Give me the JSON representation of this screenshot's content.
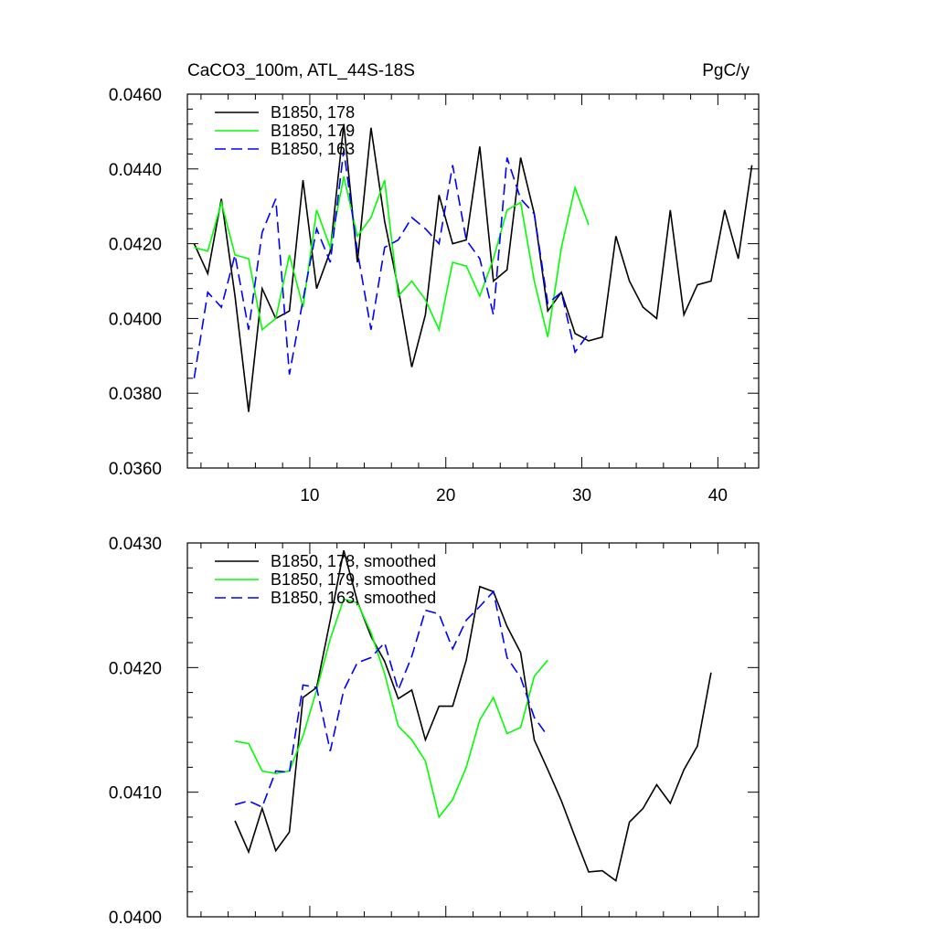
{
  "chart_data": [
    {
      "type": "line",
      "title": "CaCO3_100m, ATL_44S-18S",
      "units": "PgC/y",
      "xlim": [
        1,
        43
      ],
      "ylim": [
        0.036,
        0.046
      ],
      "xticks": [
        10,
        20,
        30,
        40
      ],
      "xtick_labels": [
        "10",
        "20",
        "30",
        "40"
      ],
      "yticks": [
        0.036,
        0.038,
        0.04,
        0.042,
        0.044,
        0.046
      ],
      "ytick_labels": [
        "0.0360",
        "0.0380",
        "0.0400",
        "0.0420",
        "0.0440",
        "0.0460"
      ],
      "legend": "top-left",
      "series": [
        {
          "name": "B1850, 178",
          "color": "#000000",
          "dash": "solid",
          "x": [
            1.5,
            2.5,
            3.5,
            4.5,
            5.5,
            6.5,
            7.5,
            8.5,
            9.5,
            10.5,
            11.5,
            12.5,
            13.5,
            14.5,
            15.5,
            16.5,
            17.5,
            18.5,
            19.5,
            20.5,
            21.5,
            22.5,
            23.5,
            24.5,
            25.5,
            26.5,
            27.5,
            28.5,
            29.5,
            30.5,
            31.5,
            32.5,
            33.5,
            34.5,
            35.5,
            36.5,
            37.5,
            38.5,
            39.5,
            40.5,
            41.5,
            42.5
          ],
          "y": [
            0.042,
            0.0412,
            0.0432,
            0.0406,
            0.0375,
            0.0408,
            0.04,
            0.0402,
            0.0437,
            0.0408,
            0.0418,
            0.0452,
            0.0415,
            0.0451,
            0.0426,
            0.0408,
            0.0387,
            0.0401,
            0.0433,
            0.042,
            0.0421,
            0.0446,
            0.041,
            0.0413,
            0.0443,
            0.0428,
            0.0402,
            0.0407,
            0.0396,
            0.0394,
            0.0395,
            0.0422,
            0.041,
            0.0403,
            0.04,
            0.0429,
            0.0401,
            0.0409,
            0.041,
            0.0429,
            0.0416,
            0.0441
          ]
        },
        {
          "name": "B1850, 179",
          "color": "#00ff00",
          "dash": "solid",
          "x": [
            1.5,
            2.5,
            3.5,
            4.5,
            5.5,
            6.5,
            7.5,
            8.5,
            9.5,
            10.5,
            11.5,
            12.5,
            13.5,
            14.5,
            15.5,
            16.5,
            17.5,
            18.5,
            19.5,
            20.5,
            21.5,
            22.5,
            23.5,
            24.5,
            25.5,
            26.5,
            27.5,
            28.5,
            29.5,
            30.5
          ],
          "y": [
            0.0419,
            0.0418,
            0.0431,
            0.0417,
            0.0416,
            0.0397,
            0.04,
            0.0417,
            0.0403,
            0.0429,
            0.0419,
            0.0438,
            0.0422,
            0.0427,
            0.0437,
            0.0406,
            0.041,
            0.0405,
            0.0397,
            0.0415,
            0.0414,
            0.0406,
            0.0416,
            0.0429,
            0.0431,
            0.041,
            0.0395,
            0.0419,
            0.0435,
            0.0425
          ]
        },
        {
          "name": "B1850, 163",
          "color": "#0000ff",
          "dash": "dashed",
          "x": [
            1.5,
            2.5,
            3.5,
            4.5,
            5.5,
            6.5,
            7.5,
            8.5,
            9.5,
            10.5,
            11.5,
            12.5,
            13.5,
            14.5,
            15.5,
            16.5,
            17.5,
            18.5,
            19.5,
            20.5,
            21.5,
            22.5,
            23.5,
            24.5,
            25.5,
            26.5,
            27.5,
            28.5,
            29.5,
            30.5
          ],
          "y": [
            0.0384,
            0.0407,
            0.0403,
            0.0417,
            0.0397,
            0.0423,
            0.0432,
            0.0385,
            0.0405,
            0.0424,
            0.0415,
            0.0445,
            0.0418,
            0.0397,
            0.0419,
            0.0421,
            0.0427,
            0.0424,
            0.042,
            0.0441,
            0.0421,
            0.0416,
            0.0401,
            0.0443,
            0.0432,
            0.0428,
            0.0404,
            0.0407,
            0.0391,
            0.0396
          ]
        }
      ]
    },
    {
      "type": "line",
      "title": "",
      "xlim": [
        1,
        43
      ],
      "ylim": [
        0.04,
        0.043
      ],
      "xticks": [
        10,
        20,
        30,
        40
      ],
      "xtick_labels": [],
      "yticks": [
        0.04,
        0.041,
        0.042,
        0.043
      ],
      "ytick_labels": [
        "0.0400",
        "0.0410",
        "0.0420",
        "0.0430"
      ],
      "legend": "top-left",
      "series": [
        {
          "name": "B1850, 178, smoothed",
          "color": "#000000",
          "dash": "solid",
          "x": [
            4.5,
            5.5,
            6.5,
            7.5,
            8.5,
            9.5,
            10.5,
            11.5,
            12.5,
            13.5,
            14.5,
            15.5,
            16.5,
            17.5,
            18.5,
            19.5,
            20.5,
            21.5,
            22.5,
            23.5,
            24.5,
            25.5,
            26.5,
            27.5,
            28.5,
            29.5,
            30.5,
            31.5,
            32.5,
            33.5,
            34.5,
            35.5,
            36.5,
            37.5,
            38.5,
            39.5
          ],
          "y": [
            0.04077,
            0.04052,
            0.04087,
            0.04053,
            0.04068,
            0.04176,
            0.04184,
            0.04238,
            0.04294,
            0.04253,
            0.04225,
            0.04205,
            0.04175,
            0.04182,
            0.04142,
            0.04169,
            0.04169,
            0.04206,
            0.04265,
            0.04261,
            0.04233,
            0.04212,
            0.04142,
            0.04118,
            0.04093,
            0.04064,
            0.04036,
            0.04037,
            0.04029,
            0.04076,
            0.04087,
            0.04106,
            0.04091,
            0.04118,
            0.04137,
            0.04196
          ]
        },
        {
          "name": "B1850, 179, smoothed",
          "color": "#00ff00",
          "dash": "solid",
          "x": [
            4.5,
            5.5,
            6.5,
            7.5,
            8.5,
            9.5,
            10.5,
            11.5,
            12.5,
            13.5,
            14.5,
            15.5,
            16.5,
            17.5,
            18.5,
            19.5,
            20.5,
            21.5,
            22.5,
            23.5,
            24.5,
            25.5,
            26.5,
            27.5
          ],
          "y": [
            0.04141,
            0.04139,
            0.04117,
            0.04115,
            0.04117,
            0.04145,
            0.04182,
            0.04223,
            0.04255,
            0.04252,
            0.04228,
            0.04195,
            0.04153,
            0.04142,
            0.04125,
            0.0408,
            0.04094,
            0.0412,
            0.04158,
            0.04176,
            0.04147,
            0.04152,
            0.04193,
            0.04206
          ]
        },
        {
          "name": "B1850, 163, smoothed",
          "color": "#0000ff",
          "dash": "dashed",
          "x": [
            4.5,
            5.5,
            6.5,
            7.5,
            8.5,
            9.5,
            10.5,
            11.5,
            12.5,
            13.5,
            14.5,
            15.5,
            16.5,
            17.5,
            18.5,
            19.5,
            20.5,
            21.5,
            22.5,
            23.5,
            24.5,
            25.5,
            26.5,
            27.5
          ],
          "y": [
            0.0409,
            0.04093,
            0.04088,
            0.04117,
            0.04116,
            0.04186,
            0.04184,
            0.04133,
            0.04182,
            0.04204,
            0.04208,
            0.0422,
            0.04182,
            0.04209,
            0.04246,
            0.04243,
            0.04215,
            0.04238,
            0.04249,
            0.04261,
            0.04208,
            0.04192,
            0.0416,
            0.04145
          ]
        }
      ]
    }
  ]
}
